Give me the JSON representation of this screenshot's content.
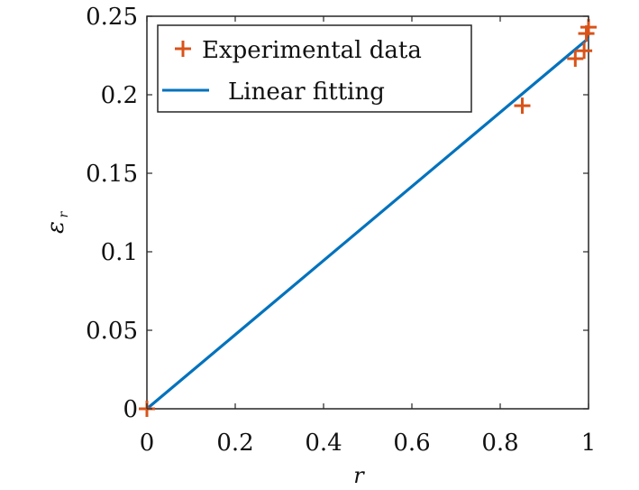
{
  "chart_data": {
    "type": "scatter",
    "title": "",
    "xlabel": "r",
    "ylabel": "ε",
    "ylabel_subscript": "r",
    "xlim": [
      0,
      1
    ],
    "ylim": [
      0,
      0.25
    ],
    "x_ticks": [
      0,
      0.2,
      0.4,
      0.6,
      0.8,
      1
    ],
    "x_tick_labels": [
      "0",
      "0.2",
      "0.4",
      "0.6",
      "0.8",
      "1"
    ],
    "y_ticks": [
      0,
      0.05,
      0.1,
      0.15,
      0.2,
      0.25
    ],
    "y_tick_labels": [
      "0",
      "0.05",
      "0.1",
      "0.15",
      "0.2",
      "0.25"
    ],
    "grid": false,
    "legend_position": "top-left",
    "series": [
      {
        "name": "Experimental data",
        "kind": "scatter",
        "marker": "plus",
        "color": "#D95319",
        "x": [
          0,
          0.85,
          0.97,
          0.99,
          0.995,
          1.0
        ],
        "y": [
          0,
          0.193,
          0.223,
          0.228,
          0.239,
          0.243
        ]
      },
      {
        "name": "Linear fitting",
        "kind": "line",
        "color": "#0072BD",
        "x": [
          0,
          1
        ],
        "y": [
          0,
          0.236
        ]
      }
    ]
  }
}
